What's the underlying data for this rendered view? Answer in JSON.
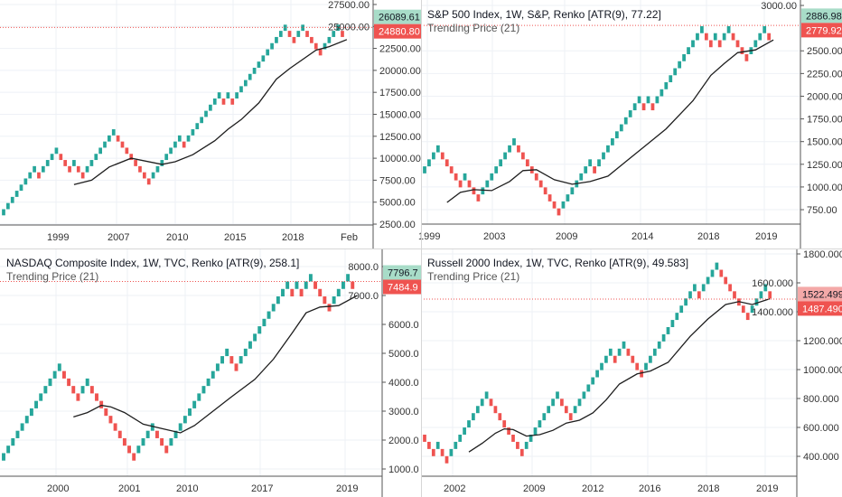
{
  "colors": {
    "up": "#26a69a",
    "down": "#ef5350",
    "trend": "#1e1e1e",
    "grid": "#eef1f6",
    "axis": "#555555"
  },
  "chart_data": [
    {
      "type": "renko",
      "title": "",
      "subtitle": "",
      "brick_size": 700,
      "start": 3500,
      "bricks": "UUUUUUUUDUUUUDDDUDDUUUUUUUDDDDDDDDUUUUUUUDUUUUUUUUDUDUUUUUUUUUUUUDDUUDDDDUUUUD",
      "trend": [
        [
          16,
          7000
        ],
        [
          20,
          7500
        ],
        [
          24,
          9000
        ],
        [
          29,
          10000
        ],
        [
          36,
          9300
        ],
        [
          39,
          9600
        ],
        [
          43,
          10400
        ],
        [
          48,
          12000
        ],
        [
          51,
          13300
        ],
        [
          54,
          14400
        ],
        [
          58,
          16300
        ],
        [
          62,
          19000
        ],
        [
          65,
          20200
        ],
        [
          71,
          22300
        ],
        [
          74,
          22700
        ],
        [
          78,
          23500
        ]
      ],
      "ylim": [
        2400,
        28010
      ],
      "yticks": [
        "2500.00",
        "5000.00",
        "7500.00",
        "10000.00",
        "12500.00",
        "15000.00",
        "17500.00",
        "20000.00",
        "22500.00",
        "25000.00",
        "27500.00"
      ],
      "xticks": [
        "1999",
        "2007",
        "2010",
        "2015",
        "2018",
        "Feb"
      ],
      "last_price": "26089.61",
      "last_price_value": 26089.61,
      "trend_price": "24880.80",
      "trend_price_value": 24880.8,
      "last_color": "#a8dcc8",
      "trend_color": "#ef5350"
    },
    {
      "type": "renko",
      "title": "S&P 500 Index, 1W, S&P, Renko [ATR(9), 77.22]",
      "subtitle": "Trending Price (21)",
      "brick_size": 77.22,
      "start": 1150,
      "bricks": "UUUUDDDDDUDDDUUUUUUUUDDDDDDDDDDUUUUUUUDUUUUUUUUUUDUDUUUUUUUUUUUDDUDUUDDDDUUUUD",
      "trend": [
        [
          5,
          830
        ],
        [
          8,
          940
        ],
        [
          11,
          970
        ],
        [
          15,
          960
        ],
        [
          19,
          1060
        ],
        [
          22,
          1180
        ],
        [
          25,
          1190
        ],
        [
          29,
          1080
        ],
        [
          33,
          1030
        ],
        [
          37,
          1060
        ],
        [
          41,
          1120
        ],
        [
          45,
          1280
        ],
        [
          50,
          1480
        ],
        [
          54,
          1640
        ],
        [
          60,
          1950
        ],
        [
          64,
          2230
        ],
        [
          67,
          2360
        ],
        [
          70,
          2480
        ],
        [
          74,
          2510
        ],
        [
          78,
          2620
        ]
      ],
      "ylim": [
        591,
        3060
      ],
      "yticks": [
        "750.00",
        "1000.00",
        "1250.00",
        "1500.00",
        "1750.00",
        "2000.00",
        "2250.00",
        "2500.00",
        "3000.00"
      ],
      "xticks": [
        "1999",
        "2003",
        "2009",
        "2014",
        "2018",
        "2019"
      ],
      "last_price": "2886.98",
      "last_price_value": 2886.98,
      "trend_price": "2779.92",
      "trend_price_value": 2779.92,
      "last_color": "#a8dcc8",
      "trend_color": "#ef5350"
    },
    {
      "type": "renko",
      "title": "NASDAQ Composite Index, 1W, TVC, Renko [ATR(9), 258.1]",
      "subtitle": "Trending Price (21)",
      "brick_size": 258.1,
      "start": 1290,
      "bricks": "UUUUUUUUUUUUUDDDDUUDDDDDDDDDDUUUUDDDUUUUUUUUUUUUUDDUUUUUUUUUUUDUDUUDDDDUUUUD",
      "trend": [
        [
          15,
          2800
        ],
        [
          18,
          2950
        ],
        [
          21,
          3200
        ],
        [
          23,
          3150
        ],
        [
          26,
          2950
        ],
        [
          30,
          2550
        ],
        [
          34,
          2400
        ],
        [
          38,
          2250
        ],
        [
          41,
          2500
        ],
        [
          45,
          3000
        ],
        [
          49,
          3500
        ],
        [
          54,
          4100
        ],
        [
          58,
          4800
        ],
        [
          62,
          5700
        ],
        [
          65,
          6400
        ],
        [
          68,
          6600
        ],
        [
          72,
          6650
        ],
        [
          76,
          7000
        ]
      ],
      "ylim": [
        750,
        8625
      ],
      "yticks": [
        "1000.0",
        "2000.0",
        "3000.0",
        "4000.0",
        "5000.0",
        "6000.0",
        "7000.0",
        "8000.0"
      ],
      "xticks": [
        "2000",
        "2001",
        "2010",
        "2017",
        "2019"
      ],
      "last_price": "7796.7",
      "last_price_value": 7796.7,
      "trend_price": "7484.9",
      "trend_price_value": 7484.9,
      "last_color": "#a8dcc8",
      "trend_color": "#ef5350"
    },
    {
      "type": "renko",
      "title": "Russell 2000 Index, 1W, TVC, Renko [ATR(9), 49.583]",
      "subtitle": "Trending Price (21)",
      "brick_size": 49.583,
      "start": 550,
      "bricks": "DDDUDDUUUUUUUUUDDDDDDDDUUUUUUUUDDDUUUUUUUUUDUUDDDDUUUUUUUUUUUUDUUUUDDDDDDDUUUUD",
      "trend": [
        [
          10,
          430
        ],
        [
          13,
          490
        ],
        [
          16,
          560
        ],
        [
          18,
          590
        ],
        [
          20,
          585
        ],
        [
          23,
          540
        ],
        [
          26,
          550
        ],
        [
          29,
          580
        ],
        [
          32,
          630
        ],
        [
          35,
          650
        ],
        [
          38,
          700
        ],
        [
          41,
          790
        ],
        [
          44,
          900
        ],
        [
          48,
          970
        ],
        [
          51,
          990
        ],
        [
          55,
          1050
        ],
        [
          60,
          1230
        ],
        [
          64,
          1350
        ],
        [
          68,
          1450
        ],
        [
          71,
          1470
        ],
        [
          74,
          1450
        ],
        [
          78,
          1490
        ]
      ],
      "ylim": [
        262.5,
        1837.5
      ],
      "yticks": [
        "400.000",
        "600.000",
        "800.000",
        "1000.000",
        "1200.000",
        "1400.000",
        "1600.000",
        "1800.000"
      ],
      "xticks": [
        "2002",
        "2009",
        "2012",
        "2016",
        "2018",
        "2019"
      ],
      "last_price": "1522.499",
      "last_price_value": 1522.499,
      "trend_price": "1487.490",
      "trend_price_value": 1487.49,
      "last_color": "#f4a9a8",
      "trend_color": "#ef5350"
    }
  ]
}
